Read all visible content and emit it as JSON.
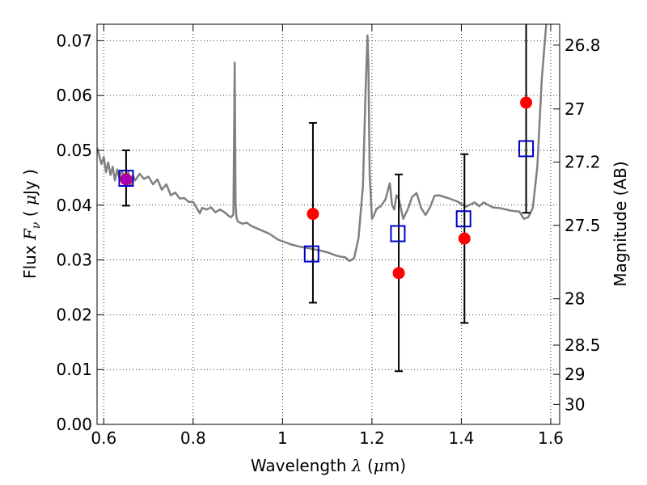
{
  "chart_data": {
    "type": "scatter",
    "xlabel": {
      "prefix": "Wavelength  ",
      "symbol": "λ",
      "mid": " (",
      "unit_sym": "μ",
      "suffix": "m)"
    },
    "ylabel": {
      "prefix": "Flux  ",
      "symbol": "F",
      "sub": "ν",
      "mid": "  ( ",
      "unit_sym": "μ",
      "suffix": "Jy )"
    },
    "y2label": "Magnitude (AB)",
    "xlim": [
      0.585,
      1.62
    ],
    "ylim": [
      0.0,
      0.073
    ],
    "grid": true,
    "xticks": [
      {
        "value": 0.6,
        "label": "0.6"
      },
      {
        "value": 0.8,
        "label": "0.8"
      },
      {
        "value": 1.0,
        "label": "1"
      },
      {
        "value": 1.2,
        "label": "1.2"
      },
      {
        "value": 1.4,
        "label": "1.4"
      },
      {
        "value": 1.6,
        "label": "1.6"
      }
    ],
    "yticks": [
      {
        "value": 0.0,
        "label": "0.00"
      },
      {
        "value": 0.01,
        "label": "0.01"
      },
      {
        "value": 0.02,
        "label": "0.02"
      },
      {
        "value": 0.03,
        "label": "0.03"
      },
      {
        "value": 0.04,
        "label": "0.04"
      },
      {
        "value": 0.05,
        "label": "0.05"
      },
      {
        "value": 0.06,
        "label": "0.06"
      },
      {
        "value": 0.07,
        "label": "0.07"
      }
    ],
    "y2ticks": [
      {
        "value": 26.8,
        "label": "26.8"
      },
      {
        "value": 27.0,
        "label": "27"
      },
      {
        "value": 27.2,
        "label": "27.2"
      },
      {
        "value": 27.5,
        "label": "27.5"
      },
      {
        "value": 28.0,
        "label": "28"
      },
      {
        "value": 28.5,
        "label": "28.5"
      },
      {
        "value": 29.0,
        "label": "29"
      },
      {
        "value": 30.0,
        "label": "30"
      }
    ],
    "series": [
      {
        "kind": "line",
        "color": "#808080",
        "x": [
          0.585,
          0.595,
          0.6,
          0.605,
          0.61,
          0.615,
          0.62,
          0.625,
          0.63,
          0.635,
          0.64,
          0.645,
          0.65,
          0.655,
          0.66,
          0.665,
          0.67,
          0.68,
          0.69,
          0.7,
          0.71,
          0.72,
          0.73,
          0.74,
          0.75,
          0.76,
          0.77,
          0.78,
          0.79,
          0.8,
          0.81,
          0.815,
          0.82,
          0.83,
          0.84,
          0.85,
          0.86,
          0.87,
          0.88,
          0.885,
          0.89,
          0.893,
          0.895,
          0.897,
          0.9,
          0.91,
          0.92,
          0.93,
          0.95,
          0.97,
          0.99,
          1.0,
          1.02,
          1.04,
          1.06,
          1.08,
          1.1,
          1.12,
          1.13,
          1.14,
          1.15,
          1.16,
          1.17,
          1.18,
          1.185,
          1.19,
          1.192,
          1.195,
          1.2,
          1.205,
          1.21,
          1.22,
          1.23,
          1.24,
          1.245,
          1.25,
          1.255,
          1.26,
          1.27,
          1.28,
          1.29,
          1.3,
          1.31,
          1.32,
          1.33,
          1.34,
          1.35,
          1.37,
          1.39,
          1.41,
          1.43,
          1.44,
          1.45,
          1.47,
          1.49,
          1.51,
          1.53,
          1.54,
          1.55,
          1.56,
          1.57,
          1.58,
          1.59
        ],
        "y": [
          0.0505,
          0.0475,
          0.0488,
          0.046,
          0.0478,
          0.0455,
          0.047,
          0.0445,
          0.0465,
          0.045,
          0.0462,
          0.0455,
          0.0448,
          0.046,
          0.0435,
          0.0455,
          0.0445,
          0.0457,
          0.0448,
          0.0452,
          0.0438,
          0.0447,
          0.0428,
          0.0438,
          0.0418,
          0.0423,
          0.0412,
          0.0413,
          0.0406,
          0.0406,
          0.0392,
          0.0385,
          0.0395,
          0.0392,
          0.0396,
          0.0387,
          0.0392,
          0.0387,
          0.038,
          0.0378,
          0.0383,
          0.066,
          0.04,
          0.0378,
          0.037,
          0.0366,
          0.0368,
          0.0362,
          0.0355,
          0.0348,
          0.0337,
          0.0334,
          0.0328,
          0.0324,
          0.0321,
          0.0318,
          0.0314,
          0.0308,
          0.0306,
          0.0305,
          0.0298,
          0.0303,
          0.034,
          0.0435,
          0.0586,
          0.071,
          0.066,
          0.0455,
          0.0375,
          0.0382,
          0.0393,
          0.0398,
          0.041,
          0.044,
          0.04,
          0.0392,
          0.0418,
          0.0412,
          0.0375,
          0.0392,
          0.0415,
          0.0422,
          0.0395,
          0.0382,
          0.0396,
          0.0417,
          0.0418,
          0.0413,
          0.0407,
          0.0397,
          0.0405,
          0.0398,
          0.0405,
          0.0396,
          0.0394,
          0.039,
          0.0388,
          0.0375,
          0.0378,
          0.0395,
          0.047,
          0.063,
          0.073
        ]
      },
      {
        "kind": "points",
        "name": "squares",
        "marker": "square",
        "color": "#0000cc",
        "x": [
          0.65,
          1.065,
          1.258,
          1.405,
          1.545
        ],
        "y": [
          0.0449,
          0.0311,
          0.0348,
          0.0375,
          0.0503
        ]
      },
      {
        "kind": "points",
        "name": "circles",
        "marker": "circle",
        "color": "#ff0000",
        "x": [
          0.65,
          1.068,
          1.26,
          1.407,
          1.545
        ],
        "y": [
          0.0447,
          0.0384,
          0.0276,
          0.0339,
          0.0587
        ],
        "yerr_low": [
          0.0399,
          0.0222,
          0.0097,
          0.0185,
          0.0386
        ],
        "yerr_high": [
          0.05,
          0.055,
          0.0456,
          0.0493,
          0.073
        ]
      }
    ]
  }
}
